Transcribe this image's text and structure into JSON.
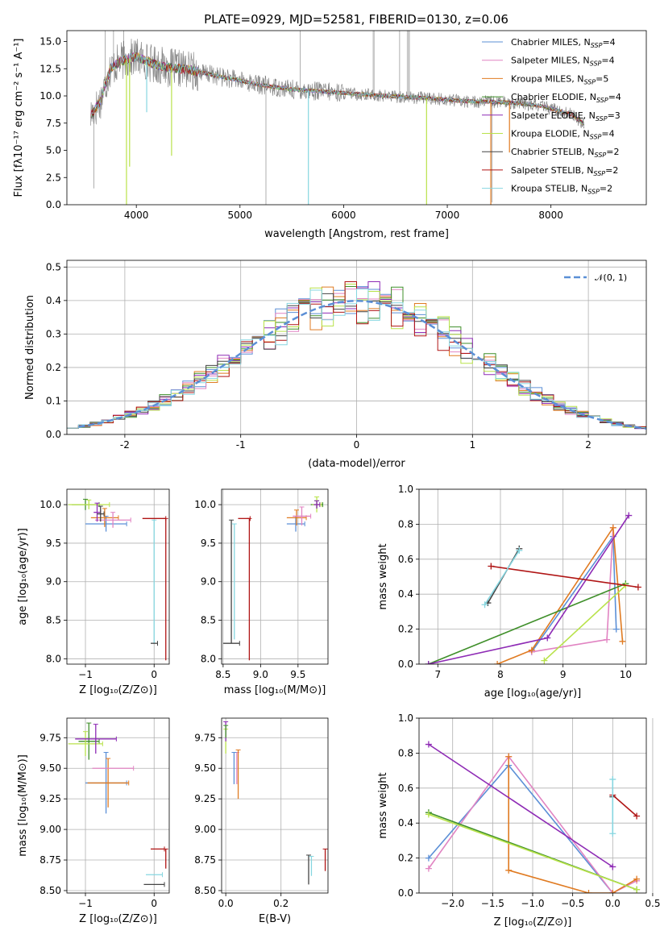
{
  "figure": {
    "title": "PLATE=0929, MJD=52581, FIBERID=0130, z=0.06"
  },
  "colors": {
    "Chabrier MILES": "#5b8fd6",
    "Salpeter MILES": "#e184c2",
    "Kroupa MILES": "#e07b22",
    "Chabrier ELODIE": "#3f8f2a",
    "Salpeter ELODIE": "#8e2bb5",
    "Kroupa ELODIE": "#b8e24a",
    "Chabrier STELIB": "#444444",
    "Salpeter STELIB": "#b01515",
    "Kroupa STELIB": "#86d6e0"
  },
  "chart_data": [
    {
      "id": "spectrum",
      "type": "line",
      "title": "PLATE=0929, MJD=52581, FIBERID=0130, z=0.06",
      "xlabel": "wavelength [Angstrom, rest frame]",
      "ylabel": "Flux [fλ10⁻¹⁷ erg cm⁻² s⁻¹ A⁻¹]",
      "xlim": [
        3330,
        8920
      ],
      "ylim": [
        0,
        16
      ],
      "xticks": [
        "4000",
        "5000",
        "6000",
        "7000",
        "8000"
      ],
      "yticks": [
        "0.0",
        "2.5",
        "5.0",
        "7.5",
        "10.0",
        "12.5",
        "15.0"
      ],
      "grid": false,
      "legend_position": "top-right",
      "legend": [
        {
          "name": "Chabrier MILES",
          "label": "Chabrier MILES, N",
          "sub": "SSP",
          "suffix": "=4"
        },
        {
          "name": "Salpeter MILES",
          "label": "Salpeter MILES, N",
          "sub": "SSP",
          "suffix": "=4"
        },
        {
          "name": "Kroupa MILES",
          "label": "Kroupa MILES, N",
          "sub": "SSP",
          "suffix": "=5"
        },
        {
          "name": "Chabrier ELODIE",
          "label": "Chabrier ELODIE, N",
          "sub": "SSP",
          "suffix": "=4"
        },
        {
          "name": "Salpeter ELODIE",
          "label": "Salpeter ELODIE, N",
          "sub": "SSP",
          "suffix": "=3"
        },
        {
          "name": "Kroupa ELODIE",
          "label": "Kroupa ELODIE, N",
          "sub": "SSP",
          "suffix": "=4"
        },
        {
          "name": "Chabrier STELIB",
          "label": "Chabrier STELIB, N",
          "sub": "SSP",
          "suffix": "=2"
        },
        {
          "name": "Salpeter STELIB",
          "label": "Salpeter STELIB, N",
          "sub": "SSP",
          "suffix": "=2"
        },
        {
          "name": "Kroupa STELIB",
          "label": "Kroupa STELIB, N",
          "sub": "SSP",
          "suffix": "=2"
        }
      ],
      "continuum": [
        [
          3560,
          8.2
        ],
        [
          3650,
          9.5
        ],
        [
          3750,
          12.5
        ],
        [
          3850,
          13.2
        ],
        [
          4000,
          13.6
        ],
        [
          4150,
          13.0
        ],
        [
          4300,
          12.6
        ],
        [
          4500,
          12.4
        ],
        [
          4700,
          12.0
        ],
        [
          4900,
          11.6
        ],
        [
          5200,
          11.0
        ],
        [
          5500,
          10.6
        ],
        [
          5800,
          10.4
        ],
        [
          6100,
          10.2
        ],
        [
          6400,
          10.0
        ],
        [
          6800,
          9.8
        ],
        [
          7200,
          9.5
        ],
        [
          7600,
          9.4
        ],
        [
          7900,
          9.1
        ],
        [
          8200,
          8.3
        ],
        [
          8320,
          7.4
        ]
      ],
      "observed_range": [
        3560,
        8320
      ]
    },
    {
      "id": "residuals",
      "type": "step-histogram",
      "xlabel": "(data-model)/error",
      "ylabel": "Normed distribution",
      "xlim": [
        -2.5,
        2.5
      ],
      "ylim": [
        0,
        0.52
      ],
      "xticks": [
        -2,
        -1,
        0,
        1,
        2
      ],
      "yticks": [
        "0.0",
        "0.1",
        "0.2",
        "0.3",
        "0.4",
        "0.5"
      ],
      "grid": true,
      "legend_position": "top-right",
      "reference": "𝒩(0, 1)",
      "bin_width": 0.1
    },
    {
      "id": "age-vs-Z",
      "type": "errorbar",
      "xlabel": "Z [log₁₀(Z/Z⊙)]",
      "ylabel": "age  [log₁₀(age/yr)]",
      "xlim": [
        -1.27,
        0.22
      ],
      "ylim": [
        7.93,
        10.2
      ],
      "xticks": [
        "−1",
        "0"
      ],
      "yticks": [
        "8.0",
        "8.5",
        "9.0",
        "9.5",
        "10.0"
      ],
      "grid": true,
      "points": [
        {
          "model": "Chabrier MILES",
          "x": -0.7,
          "y": 9.75,
          "xerr": 0.3,
          "yerr": 0.1
        },
        {
          "model": "Kroupa MILES",
          "x": -0.72,
          "y": 9.83,
          "xerr": 0.2,
          "yerr": 0.12
        },
        {
          "model": "Salpeter MILES",
          "x": -0.6,
          "y": 9.8,
          "xerr": 0.26,
          "yerr": 0.1
        },
        {
          "model": "Chabrier ELODIE",
          "x": -1.0,
          "y": 10.0,
          "xerr": 0.2,
          "yerr": 0.07
        },
        {
          "model": "Kroupa ELODIE",
          "x": -0.95,
          "y": 10.0,
          "xerr": 0.3,
          "yerr": 0.06
        },
        {
          "model": "Salpeter ELODIE",
          "x": -0.83,
          "y": 9.9,
          "xerr": 0.05,
          "yerr": 0.12
        },
        {
          "model": "Chabrier STELIB",
          "x": -0.78,
          "y": 9.88,
          "xerr": 0.05,
          "yerr": 0.1
        },
        {
          "model": "Salpeter STELIB",
          "x": 0.0,
          "y": 9.82,
          "xerr": 0.17,
          "yerr": 0.0
        },
        {
          "model": "Salpeter STELIB",
          "x": 0.17,
          "y": 8.9,
          "xerr": 0.0,
          "yerr": 0.92
        },
        {
          "model": "Kroupa STELIB",
          "x": 0.0,
          "y": 9.0,
          "xerr": 0.0,
          "yerr": 0.8
        },
        {
          "model": "Chabrier STELIB",
          "x": 0.0,
          "y": 8.2,
          "xerr": 0.05,
          "yerr": 0.0
        }
      ]
    },
    {
      "id": "age-vs-mass",
      "type": "errorbar",
      "xlabel": "mass [log₁₀(M/M⊙)]",
      "ylabel": "",
      "xlim": [
        8.48,
        9.9
      ],
      "ylim": [
        7.93,
        10.2
      ],
      "xticks": [
        "8.5",
        "9.0",
        "9.5"
      ],
      "yticks": [
        "8.0",
        "8.5",
        "9.0",
        "9.5",
        "10.0"
      ],
      "grid": true,
      "points": [
        {
          "model": "Chabrier MILES",
          "x": 9.47,
          "y": 9.75,
          "xerr": 0.12,
          "yerr": 0.1
        },
        {
          "model": "Kroupa MILES",
          "x": 9.48,
          "y": 9.83,
          "xerr": 0.13,
          "yerr": 0.1
        },
        {
          "model": "Salpeter MILES",
          "x": 9.55,
          "y": 9.85,
          "xerr": 0.12,
          "yerr": 0.12
        },
        {
          "model": "Chabrier ELODIE",
          "x": 9.75,
          "y": 10.0,
          "xerr": 0.08,
          "yerr": 0.05
        },
        {
          "model": "Kroupa ELODIE",
          "x": 9.75,
          "y": 10.0,
          "xerr": 0.06,
          "yerr": 0.1
        },
        {
          "model": "Salpeter ELODIE",
          "x": 9.75,
          "y": 10.0,
          "xerr": 0.04,
          "yerr": 0.05
        },
        {
          "model": "Chabrier STELIB",
          "x": 8.61,
          "y": 9.0,
          "xerr": 0.0,
          "yerr": 0.8
        },
        {
          "model": "Chabrier STELIB",
          "x": 8.61,
          "y": 8.2,
          "xerr": 0.11,
          "yerr": 0.0
        },
        {
          "model": "Kroupa STELIB",
          "x": 8.65,
          "y": 9.0,
          "xerr": 0.0,
          "yerr": 0.75
        },
        {
          "model": "Salpeter STELIB",
          "x": 8.85,
          "y": 8.9,
          "xerr": 0.0,
          "yerr": 0.92
        },
        {
          "model": "Salpeter STELIB",
          "x": 8.78,
          "y": 9.82,
          "xerr": 0.08,
          "yerr": 0.0
        }
      ]
    },
    {
      "id": "weight-vs-age",
      "type": "line",
      "xlabel": "age  [log₁₀(age/yr)]",
      "ylabel": "mass weight",
      "xlim": [
        6.7,
        10.33
      ],
      "ylim": [
        0,
        1.0
      ],
      "xticks": [
        "7",
        "8",
        "9",
        "10"
      ],
      "yticks": [
        "0.0",
        "0.2",
        "0.4",
        "0.6",
        "0.8",
        "1.0"
      ],
      "grid": true,
      "series": [
        {
          "model": "Chabrier MILES",
          "x": [
            8.5,
            9.8,
            9.85
          ],
          "y": [
            0.07,
            0.73,
            0.2
          ]
        },
        {
          "model": "Salpeter MILES",
          "x": [
            8.5,
            9.7,
            9.8
          ],
          "y": [
            0.07,
            0.14,
            0.78
          ]
        },
        {
          "model": "Kroupa MILES",
          "x": [
            7.95,
            8.5,
            9.8,
            9.95
          ],
          "y": [
            0.0,
            0.08,
            0.78,
            0.13
          ]
        },
        {
          "model": "Chabrier ELODIE",
          "x": [
            6.85,
            10.0
          ],
          "y": [
            0.0,
            0.46
          ]
        },
        {
          "model": "Salpeter ELODIE",
          "x": [
            6.85,
            8.75,
            10.05
          ],
          "y": [
            0.0,
            0.15,
            0.85
          ]
        },
        {
          "model": "Kroupa ELODIE",
          "x": [
            8.7,
            10.0
          ],
          "y": [
            0.02,
            0.45
          ]
        },
        {
          "model": "Chabrier STELIB",
          "x": [
            7.8,
            8.3
          ],
          "y": [
            0.35,
            0.66
          ]
        },
        {
          "model": "Salpeter STELIB",
          "x": [
            7.85,
            10.2
          ],
          "y": [
            0.56,
            0.44
          ]
        },
        {
          "model": "Kroupa STELIB",
          "x": [
            7.75,
            8.3
          ],
          "y": [
            0.34,
            0.65
          ]
        }
      ]
    },
    {
      "id": "mass-vs-Z",
      "type": "errorbar",
      "xlabel": "Z [log₁₀(Z/Z⊙)]",
      "ylabel": "mass [log₁₀(M/M⊙)]",
      "xlim": [
        -1.27,
        0.22
      ],
      "ylim": [
        8.48,
        9.91
      ],
      "xticks": [
        "−1",
        "0"
      ],
      "yticks": [
        "8.50",
        "8.75",
        "9.00",
        "9.25",
        "9.50",
        "9.75"
      ],
      "grid": true,
      "points": [
        {
          "model": "Chabrier MILES",
          "x": -0.7,
          "y": 9.38,
          "xerr": 0.3,
          "yerr": 0.25
        },
        {
          "model": "Kroupa MILES",
          "x": -0.67,
          "y": 9.38,
          "xerr": 0.3,
          "yerr": 0.2
        },
        {
          "model": "Salpeter MILES",
          "x": -0.6,
          "y": 9.5,
          "xerr": 0.3,
          "yerr": 0.0
        },
        {
          "model": "Chabrier ELODIE",
          "x": -0.95,
          "y": 9.72,
          "xerr": 0.15,
          "yerr": 0.15
        },
        {
          "model": "Kroupa ELODIE",
          "x": -1.0,
          "y": 9.7,
          "xerr": 0.25,
          "yerr": 0.1
        },
        {
          "model": "Salpeter ELODIE",
          "x": -0.85,
          "y": 9.74,
          "xerr": 0.3,
          "yerr": 0.12
        },
        {
          "model": "Chabrier STELIB",
          "x": 0.0,
          "y": 8.55,
          "xerr": 0.15,
          "yerr": 0.0
        },
        {
          "model": "Salpeter STELIB",
          "x": 0.17,
          "y": 8.76,
          "xerr": 0.0,
          "yerr": 0.08
        },
        {
          "model": "Salpeter STELIB",
          "x": 0.05,
          "y": 8.84,
          "xerr": 0.1,
          "yerr": 0.0
        },
        {
          "model": "Kroupa STELIB",
          "x": 0.0,
          "y": 8.63,
          "xerr": 0.12,
          "yerr": 0.0
        }
      ]
    },
    {
      "id": "mass-vs-EBV",
      "type": "errorbar",
      "xlabel": "E(B-V)",
      "ylabel": "",
      "xlim": [
        -0.015,
        0.37
      ],
      "ylim": [
        8.48,
        9.91
      ],
      "xticks": [
        "0.0",
        "0.2"
      ],
      "yticks": [
        "8.50",
        "8.75",
        "9.00",
        "9.25",
        "9.50",
        "9.75"
      ],
      "grid": true,
      "points": [
        {
          "model": "Salpeter MILES",
          "x": 0.04,
          "y": 9.5,
          "xerr": 0.0,
          "yerr": 0.13
        },
        {
          "model": "Kroupa MILES",
          "x": 0.045,
          "y": 9.45,
          "xerr": 0.0,
          "yerr": 0.2
        },
        {
          "model": "Chabrier MILES",
          "x": 0.03,
          "y": 9.5,
          "xerr": 0.0,
          "yerr": 0.13
        },
        {
          "model": "Kroupa ELODIE",
          "x": 0.0,
          "y": 9.72,
          "xerr": 0.0,
          "yerr": 0.1
        },
        {
          "model": "Salpeter ELODIE",
          "x": 0.0,
          "y": 9.8,
          "xerr": 0.0,
          "yerr": 0.08
        },
        {
          "model": "Chabrier ELODIE",
          "x": 0.0,
          "y": 9.8,
          "xerr": 0.0,
          "yerr": 0.05
        },
        {
          "model": "Chabrier STELIB",
          "x": 0.3,
          "y": 8.67,
          "xerr": 0.0,
          "yerr": 0.12
        },
        {
          "model": "Kroupa STELIB",
          "x": 0.31,
          "y": 8.7,
          "xerr": 0.0,
          "yerr": 0.08
        },
        {
          "model": "Salpeter STELIB",
          "x": 0.36,
          "y": 8.75,
          "xerr": 0.0,
          "yerr": 0.09
        }
      ]
    },
    {
      "id": "weight-vs-Z",
      "type": "line",
      "xlabel": "Z [log₁₀(Z/Z⊙)]",
      "ylabel": "mass weight",
      "xlim": [
        -2.42,
        0.42
      ],
      "ylim": [
        0,
        1.0
      ],
      "xticks": [
        "−2.0",
        "−1.5",
        "−1.0",
        "−0.5",
        "0.0",
        "0.5"
      ],
      "yticks": [
        "0.0",
        "0.2",
        "0.4",
        "0.6",
        "0.8",
        "1.0"
      ],
      "grid": true,
      "series": [
        {
          "model": "Chabrier MILES",
          "x": [
            -2.3,
            -1.3,
            0.0
          ],
          "y": [
            0.2,
            0.73,
            0.0
          ]
        },
        {
          "model": "Salpeter MILES",
          "x": [
            -2.3,
            -1.3,
            0.0,
            0.0,
            0.3
          ],
          "y": [
            0.14,
            0.78,
            0.0,
            0.0,
            0.07
          ]
        },
        {
          "model": "Kroupa MILES",
          "x": [
            -1.3,
            -1.3,
            -0.3,
            0.0,
            0.3
          ],
          "y": [
            0.78,
            0.13,
            0.0,
            0.0,
            0.08
          ]
        },
        {
          "model": "Chabrier ELODIE",
          "x": [
            -2.3,
            0.3
          ],
          "y": [
            0.46,
            0.02
          ]
        },
        {
          "model": "Salpeter ELODIE",
          "x": [
            -2.3,
            0.0
          ],
          "y": [
            0.85,
            0.15
          ]
        },
        {
          "model": "Kroupa ELODIE",
          "x": [
            -2.3,
            0.3
          ],
          "y": [
            0.45,
            0.02
          ]
        },
        {
          "model": "Chabrier STELIB",
          "x": [
            0.0
          ],
          "y": [
            0.55
          ]
        },
        {
          "model": "Salpeter STELIB",
          "x": [
            0.0,
            0.3
          ],
          "y": [
            0.56,
            0.44
          ]
        },
        {
          "model": "Kroupa STELIB",
          "x": [
            0.0,
            0.0
          ],
          "y": [
            0.34,
            0.65
          ]
        }
      ]
    }
  ]
}
